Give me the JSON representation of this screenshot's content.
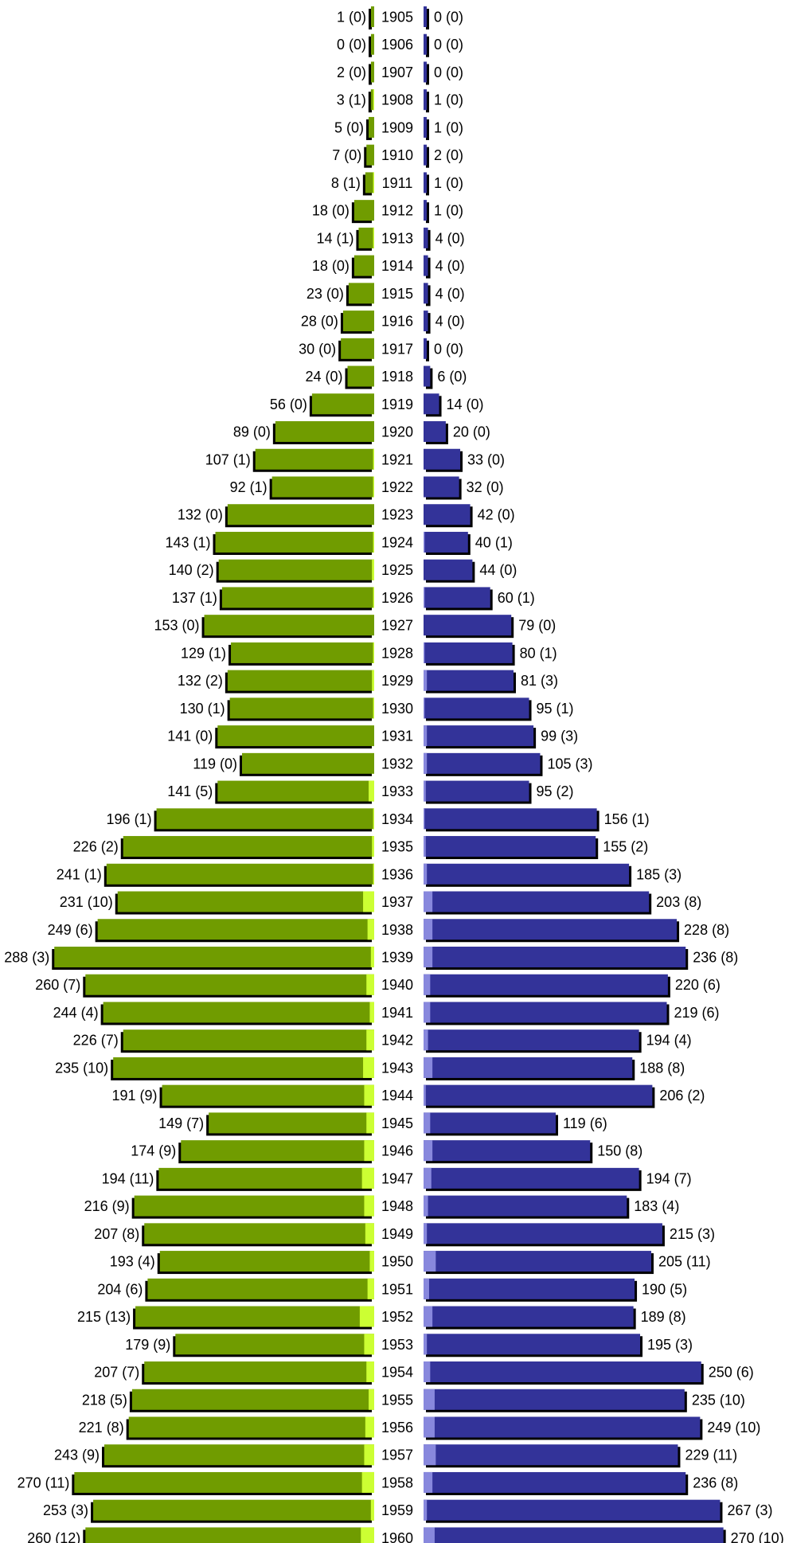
{
  "chart_data": {
    "type": "bar",
    "orientation": "horizontal",
    "layout": "population-pyramid",
    "categories": [
      "1905",
      "1906",
      "1907",
      "1908",
      "1909",
      "1910",
      "1911",
      "1912",
      "1913",
      "1914",
      "1915",
      "1916",
      "1917",
      "1918",
      "1919",
      "1920",
      "1921",
      "1922",
      "1923",
      "1924",
      "1925",
      "1926",
      "1927",
      "1928",
      "1929",
      "1930",
      "1931",
      "1932",
      "1933",
      "1934",
      "1935",
      "1936",
      "1937",
      "1938",
      "1939",
      "1940",
      "1941",
      "1942",
      "1943",
      "1944",
      "1945",
      "1946",
      "1947",
      "1948",
      "1949",
      "1950",
      "1951",
      "1952",
      "1953",
      "1954",
      "1955",
      "1956",
      "1957",
      "1958",
      "1959",
      "1960"
    ],
    "series": [
      {
        "side": "left",
        "color": "#709c00",
        "sub_color": "#ccff33",
        "values": [
          1,
          0,
          2,
          3,
          5,
          7,
          8,
          18,
          14,
          18,
          23,
          28,
          30,
          24,
          56,
          89,
          107,
          92,
          132,
          143,
          140,
          137,
          153,
          129,
          132,
          130,
          141,
          119,
          141,
          196,
          226,
          241,
          231,
          249,
          288,
          260,
          244,
          226,
          235,
          191,
          149,
          174,
          194,
          216,
          207,
          193,
          204,
          215,
          179,
          207,
          218,
          221,
          243,
          270,
          253,
          260
        ],
        "sub_values": [
          0,
          0,
          0,
          1,
          0,
          0,
          1,
          0,
          1,
          0,
          0,
          0,
          0,
          0,
          0,
          0,
          1,
          1,
          0,
          1,
          2,
          1,
          0,
          1,
          2,
          1,
          0,
          0,
          5,
          1,
          2,
          1,
          10,
          6,
          3,
          7,
          4,
          7,
          10,
          9,
          7,
          9,
          11,
          9,
          8,
          4,
          6,
          13,
          9,
          7,
          5,
          8,
          9,
          11,
          3,
          12
        ],
        "labels": [
          "1 (0)",
          "0 (0)",
          "2 (0)",
          "3 (1)",
          "5 (0)",
          "7 (0)",
          "8 (1)",
          "18 (0)",
          "14 (1)",
          "18 (0)",
          "23 (0)",
          "28 (0)",
          "30 (0)",
          "24 (0)",
          "56 (0)",
          "89 (0)",
          "107 (1)",
          "92 (1)",
          "132 (0)",
          "143 (1)",
          "140 (2)",
          "137 (1)",
          "153 (0)",
          "129 (1)",
          "132 (2)",
          "130 (1)",
          "141 (0)",
          "119 (0)",
          "141 (5)",
          "196 (1)",
          "226 (2)",
          "241 (1)",
          "231 (10)",
          "249 (6)",
          "288 (3)",
          "260 (7)",
          "244 (4)",
          "226 (7)",
          "235 (10)",
          "191 (9)",
          "149 (7)",
          "174 (9)",
          "194 (11)",
          "216 (9)",
          "207 (8)",
          "193 (4)",
          "204 (6)",
          "215 (13)",
          "179 (9)",
          "207 (7)",
          "218 (5)",
          "221 (8)",
          "243 (9)",
          "270 (11)",
          "253 (3)",
          "260 (12)"
        ]
      },
      {
        "side": "right",
        "color": "#333399",
        "sub_color": "#8888dd",
        "values": [
          0,
          0,
          0,
          1,
          1,
          2,
          1,
          1,
          4,
          4,
          4,
          4,
          0,
          6,
          14,
          20,
          33,
          32,
          42,
          40,
          44,
          60,
          79,
          80,
          81,
          95,
          99,
          105,
          95,
          156,
          155,
          185,
          203,
          228,
          236,
          220,
          219,
          194,
          188,
          206,
          119,
          150,
          194,
          183,
          215,
          205,
          190,
          189,
          195,
          250,
          235,
          249,
          229,
          236,
          267,
          270
        ],
        "sub_values": [
          0,
          0,
          0,
          0,
          0,
          0,
          0,
          0,
          0,
          0,
          0,
          0,
          0,
          0,
          0,
          0,
          0,
          0,
          0,
          1,
          0,
          1,
          0,
          1,
          3,
          1,
          3,
          3,
          2,
          1,
          2,
          3,
          8,
          8,
          8,
          6,
          6,
          4,
          8,
          2,
          6,
          8,
          7,
          4,
          3,
          11,
          5,
          8,
          3,
          6,
          10,
          10,
          11,
          8,
          3,
          10
        ],
        "labels": [
          "0 (0)",
          "0 (0)",
          "0 (0)",
          "1 (0)",
          "1 (0)",
          "2 (0)",
          "1 (0)",
          "1 (0)",
          "4 (0)",
          "4 (0)",
          "4 (0)",
          "4 (0)",
          "0 (0)",
          "6 (0)",
          "14 (0)",
          "20 (0)",
          "33 (0)",
          "32 (0)",
          "42 (0)",
          "40 (1)",
          "44 (0)",
          "60 (1)",
          "79 (0)",
          "80 (1)",
          "81 (3)",
          "95 (1)",
          "99 (3)",
          "105 (3)",
          "95 (2)",
          "156 (1)",
          "155 (2)",
          "185 (3)",
          "203 (8)",
          "228 (8)",
          "236 (8)",
          "220 (6)",
          "219 (6)",
          "194 (4)",
          "188 (8)",
          "206 (2)",
          "119 (6)",
          "150 (8)",
          "194 (7)",
          "183 (4)",
          "215 (3)",
          "205 (11)",
          "190 (5)",
          "189 (8)",
          "195 (3)",
          "250 (6)",
          "235 (10)",
          "249 (10)",
          "229 (11)",
          "236 (8)",
          "267 (3)",
          "270 (10)"
        ]
      }
    ]
  }
}
